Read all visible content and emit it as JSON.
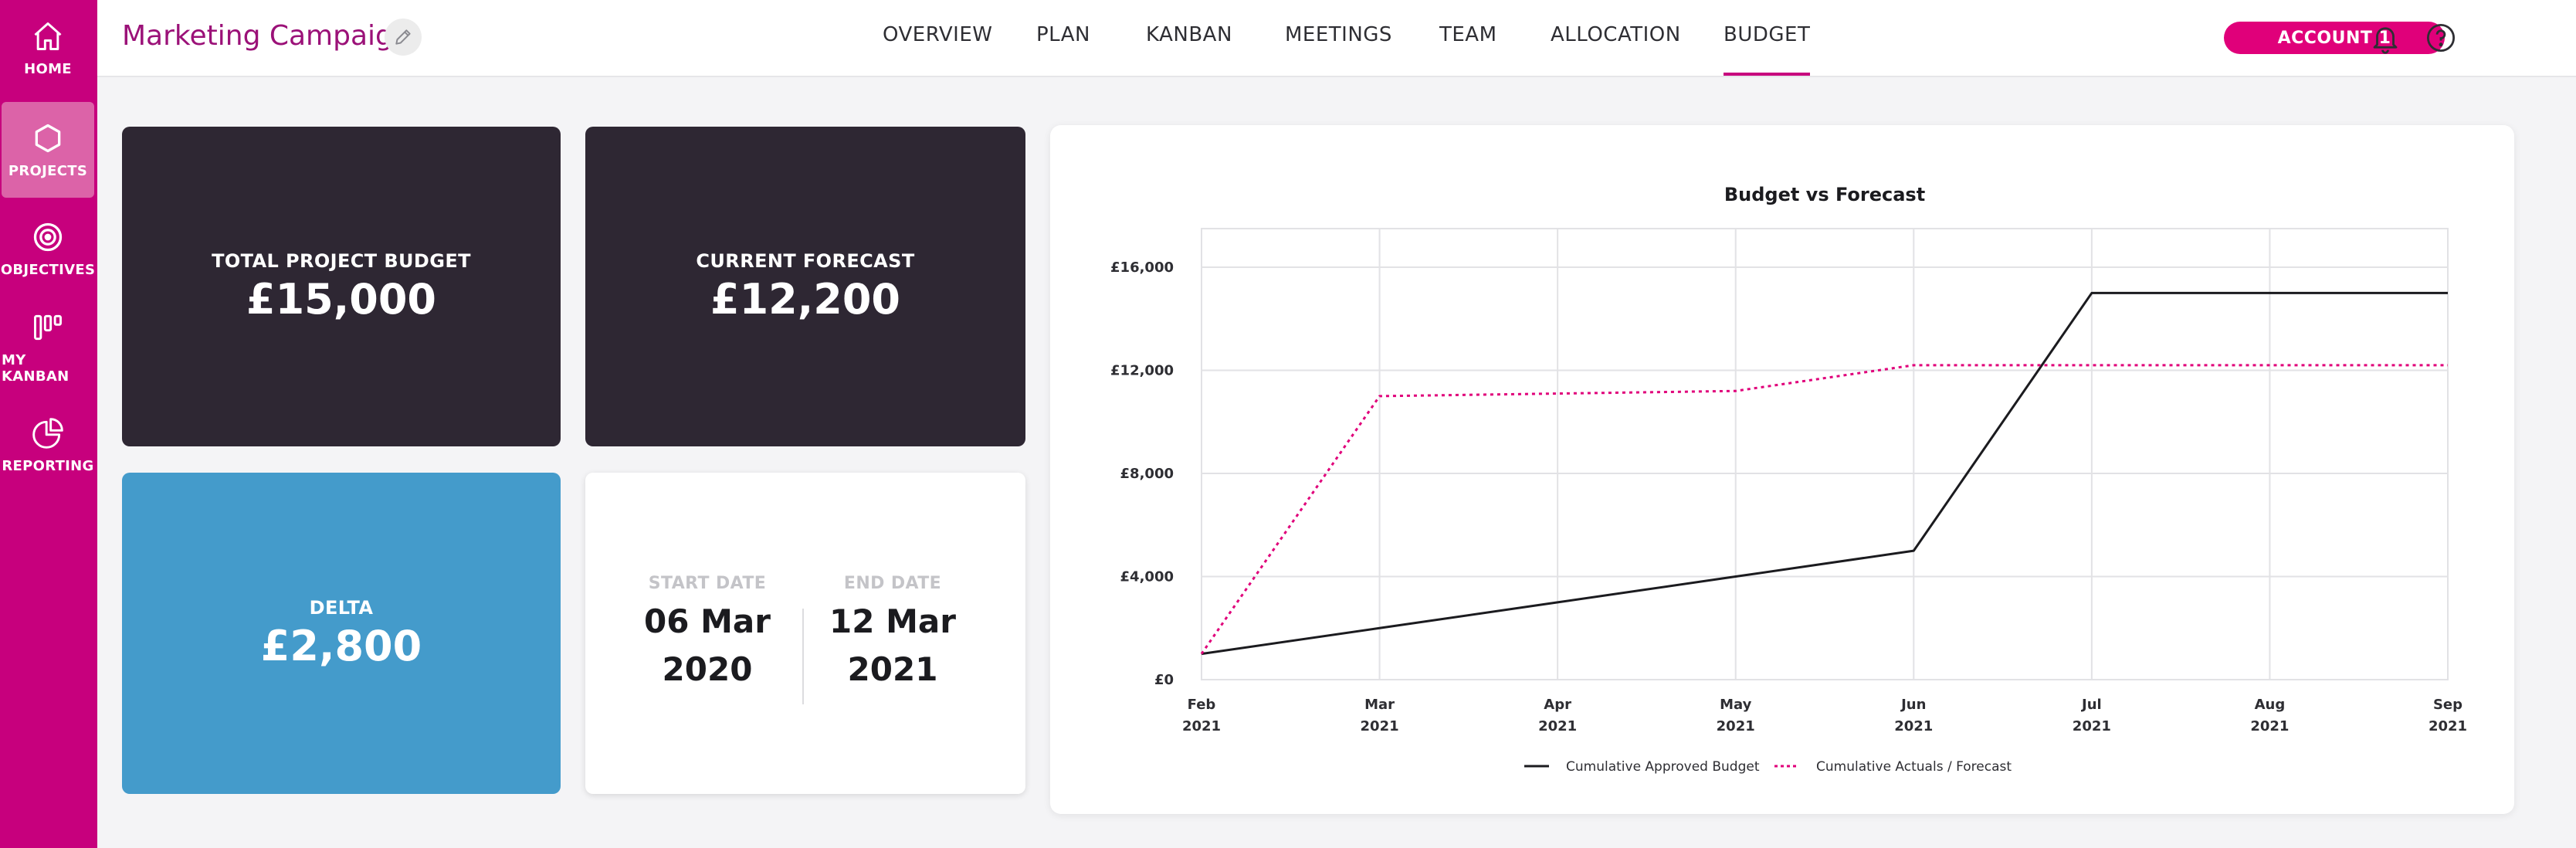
{
  "sidebar": {
    "items": [
      {
        "label": "HOME",
        "icon": "home-icon"
      },
      {
        "label": "PROJECTS",
        "icon": "hexagon-icon"
      },
      {
        "label": "OBJECTIVES",
        "icon": "target-icon"
      },
      {
        "label": "MY KANBAN",
        "icon": "kanban-icon"
      },
      {
        "label": "REPORTING",
        "icon": "pie-chart-icon"
      }
    ],
    "active": "PROJECTS",
    "color": "#c7007d"
  },
  "header": {
    "project_title": "Marketing Campaign",
    "tabs": [
      {
        "label": "OVERVIEW"
      },
      {
        "label": "PLAN"
      },
      {
        "label": "KANBAN"
      },
      {
        "label": "MEETINGS"
      },
      {
        "label": "TEAM"
      },
      {
        "label": "ALLOCATION"
      },
      {
        "label": "BUDGET"
      }
    ],
    "active_tab": "BUDGET",
    "account_label": "ACCOUNT 1"
  },
  "cards": {
    "total_budget": {
      "label": "TOTAL PROJECT BUDGET",
      "value": "£15,000"
    },
    "current_forecast": {
      "label": "CURRENT FORECAST",
      "value": "£12,200"
    },
    "delta": {
      "label": "DELTA",
      "value": "£2,800"
    },
    "start_date": {
      "label": "START DATE",
      "value": "06 Mar\n2020"
    },
    "end_date": {
      "label": "END DATE",
      "value": "12 Mar\n2021"
    }
  },
  "chart_data": {
    "type": "line",
    "title": "Budget vs Forecast",
    "categories": [
      "Feb 2021",
      "Mar 2021",
      "Apr 2021",
      "May 2021",
      "Jun 2021",
      "Jul 2021",
      "Aug 2021",
      "Sep 2021"
    ],
    "ylim": [
      0,
      17500
    ],
    "yticks": [
      0,
      4000,
      8000,
      12000,
      16000
    ],
    "ytick_labels": [
      "£0",
      "£4,000",
      "£8,000",
      "£12,000",
      "£16,000"
    ],
    "grid": true,
    "legend_position": "bottom",
    "series": [
      {
        "name": "Cumulative Approved Budget",
        "color": "#1b1b1f",
        "style": "solid",
        "values": [
          1000,
          2000,
          3000,
          4000,
          5000,
          15000,
          15000,
          15000
        ]
      },
      {
        "name": "Cumulative Actuals / Forecast",
        "color": "#e0007a",
        "style": "dotted",
        "values": [
          1000,
          11000,
          11100,
          11200,
          12200,
          12200,
          12200,
          12200
        ]
      }
    ]
  }
}
